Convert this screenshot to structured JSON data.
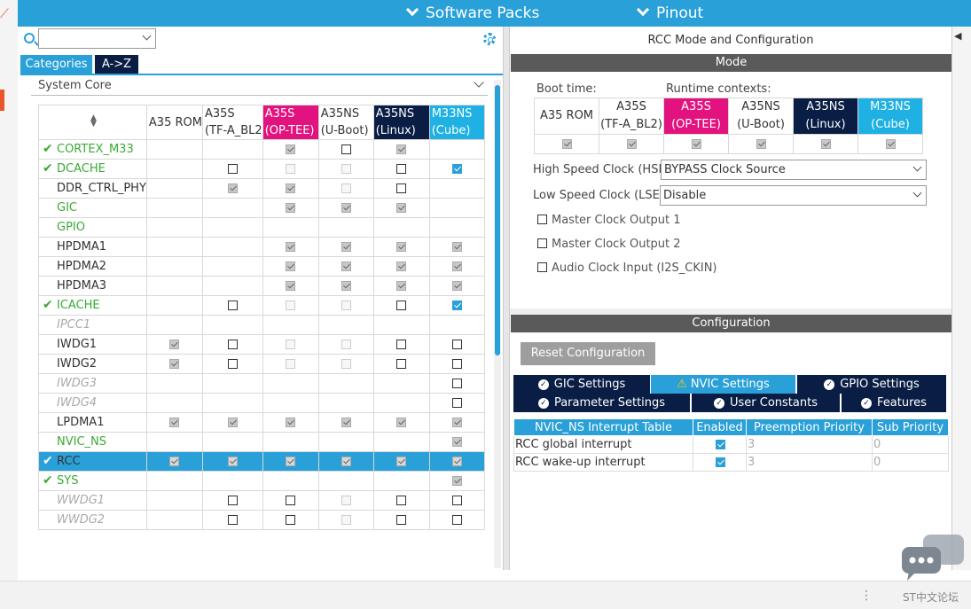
{
  "topbar": {
    "software_packs": "Software Packs",
    "pinout": "Pinout"
  },
  "left": {
    "tabs": [
      "Categories",
      "A->Z"
    ],
    "section": "System Core",
    "columns": [
      {
        "l1": "A35 ROM",
        "l2": ""
      },
      {
        "l1": "A35S",
        "l2": "(TF-A_BL2"
      },
      {
        "l1": "A35S",
        "l2": "(OP-TEE)"
      },
      {
        "l1": "A35NS",
        "l2": "(U-Boot)"
      },
      {
        "l1": "A35NS",
        "l2": "(Linux)"
      },
      {
        "l1": "M33NS",
        "l2": "(Cube)"
      }
    ],
    "rows": [
      {
        "name": "CORTEX_M33",
        "style": "green",
        "tick": true,
        "cells": [
          "",
          "",
          "c",
          "e",
          "c",
          ""
        ]
      },
      {
        "name": "DCACHE",
        "style": "green",
        "tick": true,
        "cells": [
          "",
          "e",
          "d",
          "d",
          "e",
          "b"
        ]
      },
      {
        "name": "DDR_CTRL_PHY",
        "style": "",
        "tick": false,
        "cells": [
          "",
          "c",
          "c",
          "d",
          "e",
          ""
        ]
      },
      {
        "name": "GIC",
        "style": "green",
        "tick": false,
        "cells": [
          "",
          "",
          "c",
          "c",
          "c",
          ""
        ]
      },
      {
        "name": "GPIO",
        "style": "green",
        "tick": false,
        "cells": [
          "",
          "",
          "",
          "",
          "",
          ""
        ]
      },
      {
        "name": "HPDMA1",
        "style": "",
        "tick": false,
        "cells": [
          "",
          "",
          "c",
          "c",
          "c",
          "c"
        ]
      },
      {
        "name": "HPDMA2",
        "style": "",
        "tick": false,
        "cells": [
          "",
          "",
          "c",
          "c",
          "c",
          "c"
        ]
      },
      {
        "name": "HPDMA3",
        "style": "",
        "tick": false,
        "cells": [
          "",
          "",
          "c",
          "c",
          "c",
          "c"
        ]
      },
      {
        "name": "ICACHE",
        "style": "green",
        "tick": true,
        "cells": [
          "",
          "e",
          "d",
          "d",
          "e",
          "b"
        ]
      },
      {
        "name": "IPCC1",
        "style": "gray",
        "tick": false,
        "cells": [
          "",
          "",
          "",
          "",
          "",
          ""
        ]
      },
      {
        "name": "IWDG1",
        "style": "",
        "tick": false,
        "cells": [
          "c",
          "e",
          "d",
          "d",
          "e",
          "e"
        ]
      },
      {
        "name": "IWDG2",
        "style": "",
        "tick": false,
        "cells": [
          "c",
          "e",
          "d",
          "d",
          "e",
          "e"
        ]
      },
      {
        "name": "IWDG3",
        "style": "gray",
        "tick": false,
        "cells": [
          "",
          "",
          "",
          "",
          "",
          "e"
        ]
      },
      {
        "name": "IWDG4",
        "style": "gray",
        "tick": false,
        "cells": [
          "",
          "",
          "",
          "",
          "",
          "e"
        ]
      },
      {
        "name": "LPDMA1",
        "style": "",
        "tick": false,
        "cells": [
          "c",
          "c",
          "c",
          "c",
          "c",
          "c"
        ]
      },
      {
        "name": "NVIC_NS",
        "style": "green",
        "tick": false,
        "cells": [
          "",
          "",
          "",
          "",
          "",
          "c"
        ]
      },
      {
        "name": "RCC",
        "style": "sel",
        "tick": true,
        "cells": [
          "c",
          "c",
          "c",
          "c",
          "c",
          "c"
        ]
      },
      {
        "name": "SYS",
        "style": "green",
        "tick": true,
        "cells": [
          "",
          "",
          "",
          "",
          "",
          "c"
        ]
      },
      {
        "name": "WWDG1",
        "style": "gray",
        "tick": false,
        "cells": [
          "",
          "e",
          "e",
          "d",
          "e",
          "e"
        ]
      },
      {
        "name": "WWDG2",
        "style": "gray",
        "tick": false,
        "cells": [
          "",
          "e",
          "e",
          "d",
          "e",
          "e"
        ]
      }
    ]
  },
  "right": {
    "title": "RCC Mode and Configuration",
    "mode_label": "Mode",
    "boot_time": "Boot time:",
    "runtime_contexts": "Runtime contexts:",
    "contexts": [
      {
        "l1": "A35 ROM",
        "l2": ""
      },
      {
        "l1": "A35S",
        "l2": "(TF-A_BL2)"
      },
      {
        "l1": "A35S",
        "l2": "(OP-TEE)"
      },
      {
        "l1": "A35NS",
        "l2": "(U-Boot)"
      },
      {
        "l1": "A35NS",
        "l2": "(Linux)"
      },
      {
        "l1": "M33NS",
        "l2": "(Cube)"
      }
    ],
    "hse_label": "High Speed Clock (HSE)",
    "hse_value": "BYPASS Clock Source",
    "lse_label": "Low Speed Clock (LSE)",
    "lse_value": "Disable",
    "mco1": "Master Clock Output 1",
    "mco2": "Master Clock Output 2",
    "audio": "Audio Clock Input (I2S_CKIN)",
    "config_label": "Configuration",
    "reset": "Reset Configuration",
    "tabs_row1": [
      "GIC Settings",
      "NVIC Settings",
      "GPIO Settings"
    ],
    "tabs_row2": [
      "Parameter Settings",
      "User Constants",
      "Features"
    ],
    "nvic_headers": [
      "NVIC_NS Interrupt Table",
      "Enabled",
      "Preemption Priority",
      "Sub Priority"
    ],
    "nvic_rows": [
      {
        "name": "RCC global interrupt",
        "prio": "3",
        "sub": "0"
      },
      {
        "name": "RCC wake-up interrupt",
        "prio": "3",
        "sub": "0"
      }
    ]
  },
  "bottom": {
    "brand": "ST中文论坛",
    "dots": "⋮"
  },
  "colors": {
    "accent": "#2aa0d8",
    "navy": "#0a1e45",
    "pink": "#e2127e",
    "cyan": "#1fb1e3",
    "green": "#3aaa35"
  }
}
